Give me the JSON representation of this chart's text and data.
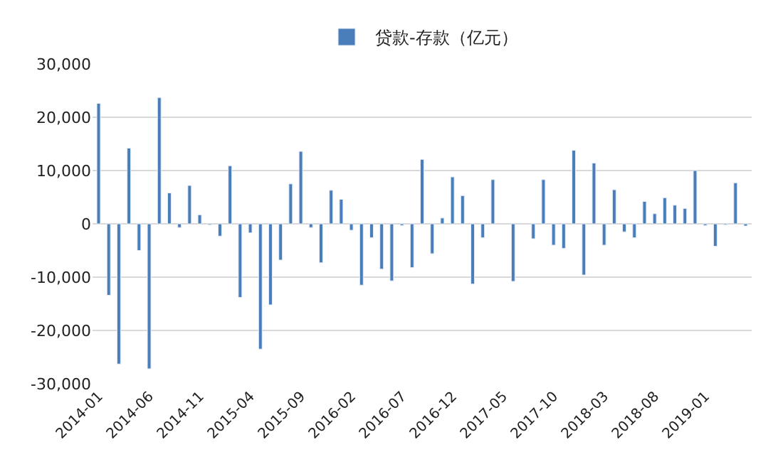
{
  "chart_data": {
    "type": "bar",
    "categories": [
      "2014-01",
      null,
      null,
      null,
      null,
      "2014-06",
      null,
      null,
      null,
      null,
      "2014-11",
      null,
      null,
      null,
      null,
      "2015-04",
      null,
      null,
      null,
      null,
      "2015-09",
      null,
      null,
      null,
      null,
      "2016-02",
      null,
      null,
      null,
      null,
      "2016-07",
      null,
      null,
      null,
      null,
      "2016-12",
      null,
      null,
      null,
      null,
      "2017-05",
      null,
      null,
      null,
      null,
      "2017-10",
      null,
      null,
      null,
      null,
      "2018-03",
      null,
      null,
      null,
      null,
      "2018-08",
      null,
      null,
      null,
      null,
      "2019-01",
      null,
      null,
      null,
      null
    ],
    "series": [
      {
        "name": "贷款-存款（亿元）",
        "color": "#4a7ebb",
        "values": [
          22600,
          -13400,
          -26300,
          14200,
          -5000,
          -27200,
          23700,
          5800,
          -700,
          7200,
          1700,
          -200,
          -2300,
          10900,
          -13800,
          -1700,
          -23500,
          -15200,
          -6800,
          7500,
          13600,
          -700,
          -7300,
          6300,
          4600,
          -1200,
          -11500,
          -2600,
          -8500,
          -10700,
          -300,
          -8200,
          12100,
          -5600,
          1100,
          8800,
          5300,
          -11300,
          -2600,
          8300,
          null,
          -10800,
          null,
          -2800,
          8300,
          -4000,
          -4600,
          13800,
          -9600,
          11400,
          -4000,
          6400,
          -1500,
          -2600,
          4200,
          1900,
          4900,
          3500,
          2900,
          10000,
          -300,
          -4200,
          -200,
          7700,
          -400
        ]
      }
    ],
    "ylim": [
      -30000,
      30000
    ],
    "yticks": [
      {
        "value": -30000,
        "label": "-30,000"
      },
      {
        "value": -20000,
        "label": "-20,000"
      },
      {
        "value": -10000,
        "label": "-10,000"
      },
      0,
      {
        "value": 10000,
        "label": "10,000"
      },
      {
        "value": 20000,
        "label": "20,000"
      },
      {
        "value": 30000,
        "label": "30,000"
      }
    ],
    "grid": "y",
    "legend": "top"
  }
}
